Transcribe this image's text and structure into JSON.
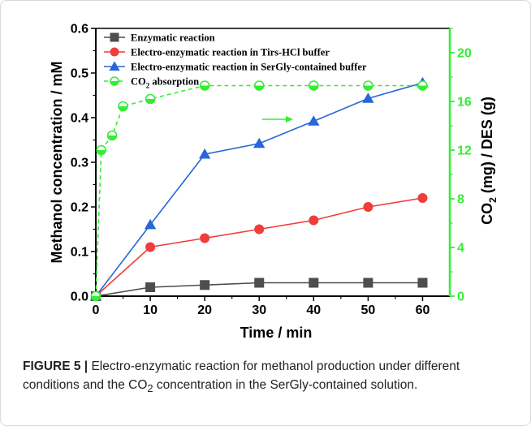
{
  "chart_data": {
    "type": "line",
    "x": [
      0,
      10,
      20,
      30,
      40,
      50,
      60
    ],
    "xlabel": "Time / min",
    "xlim": [
      0,
      65
    ],
    "xticks": [
      "0",
      "10",
      "20",
      "30",
      "40",
      "50",
      "60"
    ],
    "ylabel": "Methanol concentration / mM",
    "ylim": [
      0,
      0.6
    ],
    "yticks": [
      "0.0",
      "0.1",
      "0.2",
      "0.3",
      "0.4",
      "0.5",
      "0.6"
    ],
    "y2label": "CO2 (mg) / DES (g)",
    "y2label_main": "CO",
    "y2label_sub": "2",
    "y2label_rest": " (mg) / DES (g)",
    "y2lim": [
      0,
      22
    ],
    "y2ticks": [
      "0",
      "4",
      "8",
      "12",
      "16",
      "20"
    ],
    "y2_axis_color": "#33ee33",
    "grid": false,
    "legend_position": "top-left",
    "series": [
      {
        "name": "Enzymatic reaction",
        "axis": "left",
        "color": "#4d4d4d",
        "marker": "square",
        "x": [
          0,
          10,
          20,
          30,
          40,
          50,
          60
        ],
        "values": [
          0.0,
          0.02,
          0.025,
          0.03,
          0.03,
          0.03,
          0.03
        ]
      },
      {
        "name": "Electro-enzymatic reaction in Tirs-HCl buffer",
        "axis": "left",
        "color": "#f03c3c",
        "marker": "circle",
        "x": [
          0,
          10,
          20,
          30,
          40,
          50,
          60
        ],
        "values": [
          0.0,
          0.11,
          0.13,
          0.15,
          0.17,
          0.2,
          0.22
        ]
      },
      {
        "name": "Electro-enzymatic reaction in SerGly-contained buffer",
        "axis": "left",
        "color": "#2667d9",
        "marker": "triangle",
        "x": [
          0,
          10,
          20,
          30,
          40,
          50,
          60
        ],
        "values": [
          0.0,
          0.16,
          0.318,
          0.342,
          0.392,
          0.443,
          0.478
        ]
      },
      {
        "name": "CO2 absorption",
        "name_main": "CO",
        "name_sub": "2",
        "name_rest": " absorption",
        "axis": "right",
        "color": "#33ee33",
        "marker": "open-circle-half",
        "dashed": true,
        "x": [
          0,
          1,
          3,
          5,
          10,
          20,
          30,
          40,
          50,
          60
        ],
        "values": [
          0,
          12.0,
          13.2,
          15.6,
          16.2,
          17.3,
          17.3,
          17.3,
          17.3,
          17.3
        ]
      }
    ]
  },
  "caption": {
    "label": "FIGURE 5 |",
    "text_1": " Electro-enzymatic reaction for methanol production under different conditions and the CO",
    "sub": "2",
    "text_2": " concentration in the SerGly-contained solution."
  }
}
